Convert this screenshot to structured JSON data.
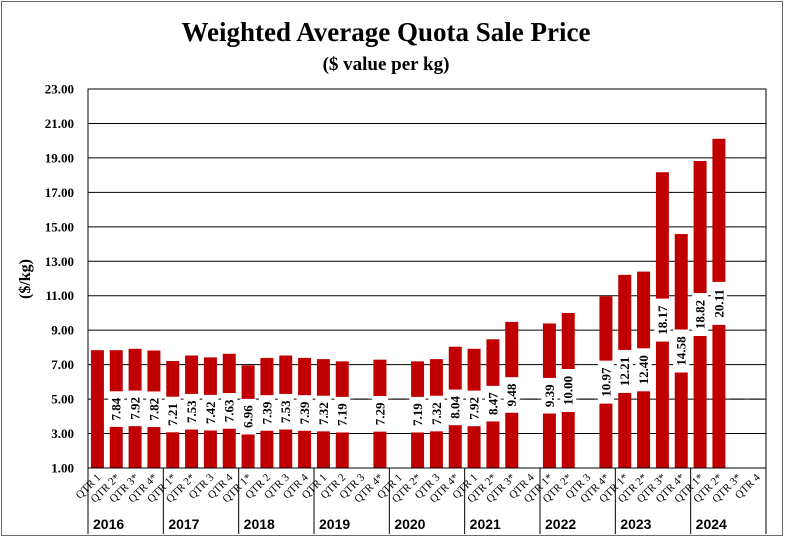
{
  "chart_data": {
    "type": "bar",
    "title": "Weighted Average Quota Sale Price",
    "subtitle": "($ value per kg)",
    "xlabel": "",
    "ylabel": "($/kg)",
    "ylim": [
      1.0,
      23.0
    ],
    "yticks": [
      "1.00",
      "3.00",
      "5.00",
      "7.00",
      "9.00",
      "11.00",
      "13.00",
      "15.00",
      "17.00",
      "19.00",
      "21.00",
      "23.00"
    ],
    "grid": true,
    "bar_color": "#c00000",
    "label_bg": "#ffffff",
    "categories": [
      "QTR 1",
      "QTR 2*",
      "QTR 3*",
      "QTR 4*",
      "QTR 1*",
      "QTR 2*",
      "QTR 3",
      "QTR 4",
      "QTR 1*",
      "QTR 2",
      "QTR 3",
      "QTR 4",
      "QTR 1",
      "QTR 2",
      "QTR 3",
      "QTR 4*",
      "QTR 1",
      "QTR 2*",
      "QTR 3",
      "QTR 4*",
      "QTR 1",
      "QTR 2*",
      "QTR 3*",
      "QTR 4",
      "QTR 1*",
      "QTR 2*",
      "QTR 3",
      "QTR 4*",
      "QTR 1*",
      "QTR 2*",
      "QTR 3*",
      "QTR 4*",
      "QTR 1*",
      "QTR 2*",
      "QTR 3*",
      "QTR 4"
    ],
    "values": [
      7.84,
      7.84,
      7.92,
      7.82,
      7.21,
      7.53,
      7.42,
      7.63,
      6.96,
      7.39,
      7.53,
      7.39,
      7.32,
      7.19,
      null,
      7.29,
      null,
      7.19,
      7.32,
      8.04,
      7.92,
      8.47,
      9.48,
      null,
      9.39,
      10.0,
      null,
      10.97,
      12.21,
      12.4,
      18.17,
      14.58,
      18.82,
      20.11,
      null,
      null
    ],
    "value_labels": [
      "",
      "7.84",
      "7.92",
      "7.82",
      "7.21",
      "7.53",
      "7.42",
      "7.63",
      "6.96",
      "7.39",
      "7.53",
      "7.39",
      "7.32",
      "7.19",
      "",
      "7.29",
      "",
      "7.19",
      "7.32",
      "8.04",
      "7.92",
      "8.47",
      "9.48",
      "",
      "9.39",
      "10.00",
      "",
      "10.97",
      "12.21",
      "12.40",
      "18.17",
      "14.58",
      "18.82",
      "20.11",
      "",
      ""
    ],
    "years": [
      "2016",
      "2017",
      "2018",
      "2019",
      "2020",
      "2021",
      "2022",
      "2023",
      "2024"
    ]
  }
}
